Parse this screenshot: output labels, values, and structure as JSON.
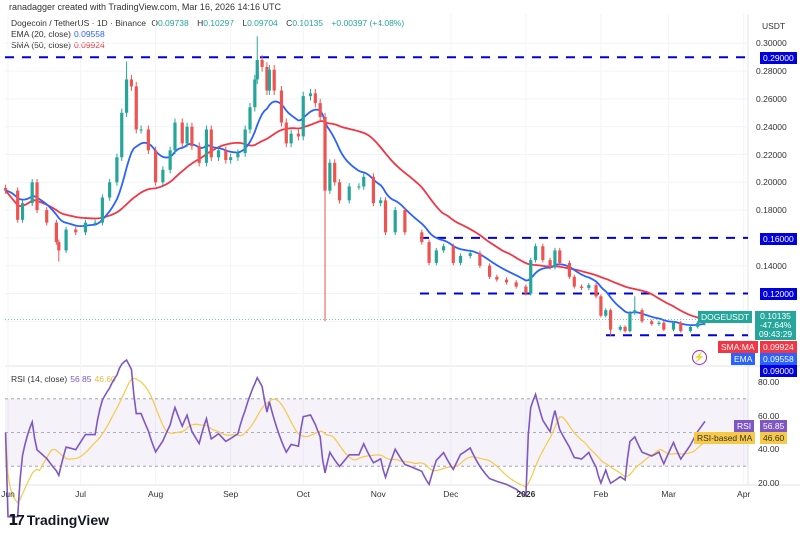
{
  "credit": "ranadagger created with TradingView.com, Mar 16, 2026 14:16 UTC",
  "legend": {
    "symbol": "Dogecoin / TetherUS · 1D · Binance",
    "o_label": "O",
    "o": "0.09738",
    "h_label": "H",
    "h": "0.10297",
    "l_label": "L",
    "l": "0.09704",
    "c_label": "C",
    "c": "0.10135",
    "change": "+0.00397 (+4.08%)",
    "ema_label": "EMA (20, close)",
    "ema_value": "0.09558",
    "sma_label": "SMA (50, close)",
    "sma_value": "0.09924",
    "rsi_label": "RSI (14, close)",
    "rsi_value": "56.85",
    "rsi_ma_value": "46.60"
  },
  "price_axis": {
    "currency": "USDT",
    "ticks": [
      "0.30000",
      "0.28000",
      "0.26000",
      "0.24000",
      "0.22000",
      "0.20000",
      "0.18000",
      "0.14000"
    ],
    "level_tags": [
      "0.29000",
      "0.16000",
      "0.12000",
      "0.09000"
    ]
  },
  "tags": {
    "symbol": "DOGEUSDT",
    "price": "0.10135",
    "change_pct": "-47.64%",
    "countdown": "09:43:29",
    "sma_name": "SMA:MA",
    "sma": "0.09924",
    "ema_name": "EMA",
    "ema": "0.09558",
    "rsi_name": "RSI",
    "rsi": "56.85",
    "rsi_ma_name": "RSI-based MA",
    "rsi_ma": "46.60"
  },
  "rsi_axis": {
    "ticks": [
      "80.00",
      "60.00",
      "40.00",
      "20.00"
    ]
  },
  "time_axis": [
    "Jun",
    "Jul",
    "Aug",
    "Sep",
    "Oct",
    "Nov",
    "Dec",
    "2026",
    "Feb",
    "Mar",
    "Apr"
  ],
  "brand": "TradingView",
  "colors": {
    "up": "#26a69a",
    "down": "#ef5350",
    "ema": "#2962ff",
    "sma": "#f23645",
    "levels": "#0000dd",
    "rsi": "#7e57c2",
    "rsi_ma": "#f7c948"
  },
  "chart_data": {
    "type": "candlestick",
    "title": "Dogecoin / TetherUS · 1D · Binance",
    "ylim": [
      0.085,
      0.31
    ],
    "rsi_ylim": [
      15,
      90
    ],
    "rsi_bands": [
      30,
      70
    ],
    "horizontal_levels": [
      0.29,
      0.16,
      0.12,
      0.09
    ],
    "series_close": [
      {
        "d": "2025-05-31",
        "c": 0.194
      },
      {
        "d": "2025-06-05",
        "c": 0.173
      },
      {
        "d": "2025-06-07",
        "c": 0.185
      },
      {
        "d": "2025-06-11",
        "c": 0.2
      },
      {
        "d": "2025-06-13",
        "c": 0.18
      },
      {
        "d": "2025-06-17",
        "c": 0.171
      },
      {
        "d": "2025-06-21",
        "c": 0.157
      },
      {
        "d": "2025-06-22",
        "c": 0.151,
        "l": 0.143
      },
      {
        "d": "2025-06-25",
        "c": 0.166
      },
      {
        "d": "2025-06-29",
        "c": 0.164
      },
      {
        "d": "2025-07-03",
        "c": 0.171
      },
      {
        "d": "2025-07-07",
        "c": 0.171
      },
      {
        "d": "2025-07-10",
        "c": 0.189
      },
      {
        "d": "2025-07-13",
        "c": 0.2
      },
      {
        "d": "2025-07-16",
        "c": 0.218
      },
      {
        "d": "2025-07-18",
        "c": 0.25
      },
      {
        "d": "2025-07-20",
        "c": 0.274,
        "h": 0.287
      },
      {
        "d": "2025-07-22",
        "c": 0.269
      },
      {
        "d": "2025-07-24",
        "c": 0.238
      },
      {
        "d": "2025-07-26",
        "c": 0.238
      },
      {
        "d": "2025-07-29",
        "c": 0.223
      },
      {
        "d": "2025-08-01",
        "c": 0.2
      },
      {
        "d": "2025-08-04",
        "c": 0.209
      },
      {
        "d": "2025-08-07",
        "c": 0.223
      },
      {
        "d": "2025-08-09",
        "c": 0.243
      },
      {
        "d": "2025-08-12",
        "c": 0.228
      },
      {
        "d": "2025-08-14",
        "c": 0.24
      },
      {
        "d": "2025-08-16",
        "c": 0.226
      },
      {
        "d": "2025-08-19",
        "c": 0.214
      },
      {
        "d": "2025-08-22",
        "c": 0.238
      },
      {
        "d": "2025-08-24",
        "c": 0.218
      },
      {
        "d": "2025-08-27",
        "c": 0.223
      },
      {
        "d": "2025-08-30",
        "c": 0.216
      },
      {
        "d": "2025-09-01",
        "c": 0.218
      },
      {
        "d": "2025-09-04",
        "c": 0.221
      },
      {
        "d": "2025-09-07",
        "c": 0.238
      },
      {
        "d": "2025-09-09",
        "c": 0.254
      },
      {
        "d": "2025-09-11",
        "c": 0.274
      },
      {
        "d": "2025-09-12",
        "c": 0.288,
        "h": 0.305
      },
      {
        "d": "2025-09-14",
        "c": 0.283
      },
      {
        "d": "2025-09-16",
        "c": 0.266
      },
      {
        "d": "2025-09-17",
        "c": 0.281
      },
      {
        "d": "2025-09-19",
        "c": 0.266
      },
      {
        "d": "2025-09-22",
        "c": 0.243
      },
      {
        "d": "2025-09-24",
        "c": 0.228
      },
      {
        "d": "2025-09-26",
        "c": 0.235
      },
      {
        "d": "2025-09-29",
        "c": 0.233
      },
      {
        "d": "2025-10-01",
        "c": 0.262
      },
      {
        "d": "2025-10-04",
        "c": 0.264
      },
      {
        "d": "2025-10-06",
        "c": 0.257
      },
      {
        "d": "2025-10-08",
        "c": 0.247
      },
      {
        "d": "2025-10-10",
        "c": 0.194,
        "l": 0.1
      },
      {
        "d": "2025-10-12",
        "c": 0.214
      },
      {
        "d": "2025-10-14",
        "c": 0.2
      },
      {
        "d": "2025-10-16",
        "c": 0.187
      },
      {
        "d": "2025-10-20",
        "c": 0.197
      },
      {
        "d": "2025-10-24",
        "c": 0.197
      },
      {
        "d": "2025-10-26",
        "c": 0.204
      },
      {
        "d": "2025-10-30",
        "c": 0.185
      },
      {
        "d": "2025-11-02",
        "c": 0.187
      },
      {
        "d": "2025-11-04",
        "c": 0.164
      },
      {
        "d": "2025-11-08",
        "c": 0.18
      },
      {
        "d": "2025-11-12",
        "c": 0.164
      },
      {
        "d": "2025-11-19",
        "c": 0.157
      },
      {
        "d": "2025-11-22",
        "c": 0.142
      },
      {
        "d": "2025-11-25",
        "c": 0.151
      },
      {
        "d": "2025-11-28",
        "c": 0.154
      },
      {
        "d": "2025-12-02",
        "c": 0.142
      },
      {
        "d": "2025-12-05",
        "c": 0.147
      },
      {
        "d": "2025-12-09",
        "c": 0.149
      },
      {
        "d": "2025-12-13",
        "c": 0.14
      },
      {
        "d": "2025-12-17",
        "c": 0.132
      },
      {
        "d": "2025-12-20",
        "c": 0.13
      },
      {
        "d": "2025-12-24",
        "c": 0.128
      },
      {
        "d": "2025-12-28",
        "c": 0.125
      },
      {
        "d": "2026-01-01",
        "c": 0.12
      },
      {
        "d": "2026-01-03",
        "c": 0.144
      },
      {
        "d": "2026-01-05",
        "c": 0.154
      },
      {
        "d": "2026-01-08",
        "c": 0.144
      },
      {
        "d": "2026-01-11",
        "c": 0.139
      },
      {
        "d": "2026-01-13",
        "c": 0.151
      },
      {
        "d": "2026-01-15",
        "c": 0.142
      },
      {
        "d": "2026-01-19",
        "c": 0.132
      },
      {
        "d": "2026-01-21",
        "c": 0.125
      },
      {
        "d": "2026-01-24",
        "c": 0.124
      },
      {
        "d": "2026-01-27",
        "c": 0.126
      },
      {
        "d": "2026-01-30",
        "c": 0.118
      },
      {
        "d": "2026-02-01",
        "c": 0.104
      },
      {
        "d": "2026-02-03",
        "c": 0.108
      },
      {
        "d": "2026-02-05",
        "c": 0.094,
        "l": 0.089
      },
      {
        "d": "2026-02-09",
        "c": 0.096
      },
      {
        "d": "2026-02-11",
        "c": 0.093
      },
      {
        "d": "2026-02-13",
        "c": 0.106
      },
      {
        "d": "2026-02-15",
        "c": 0.108,
        "h": 0.118
      },
      {
        "d": "2026-02-18",
        "c": 0.1
      },
      {
        "d": "2026-02-22",
        "c": 0.098
      },
      {
        "d": "2026-02-25",
        "c": 0.099
      },
      {
        "d": "2026-02-27",
        "c": 0.094
      },
      {
        "d": "2026-03-03",
        "c": 0.099
      },
      {
        "d": "2026-03-06",
        "c": 0.093
      },
      {
        "d": "2026-03-10",
        "c": 0.096
      },
      {
        "d": "2026-03-13",
        "c": 0.099
      },
      {
        "d": "2026-03-16",
        "c": 0.10135,
        "h": 0.10297,
        "l": 0.09704
      }
    ]
  }
}
